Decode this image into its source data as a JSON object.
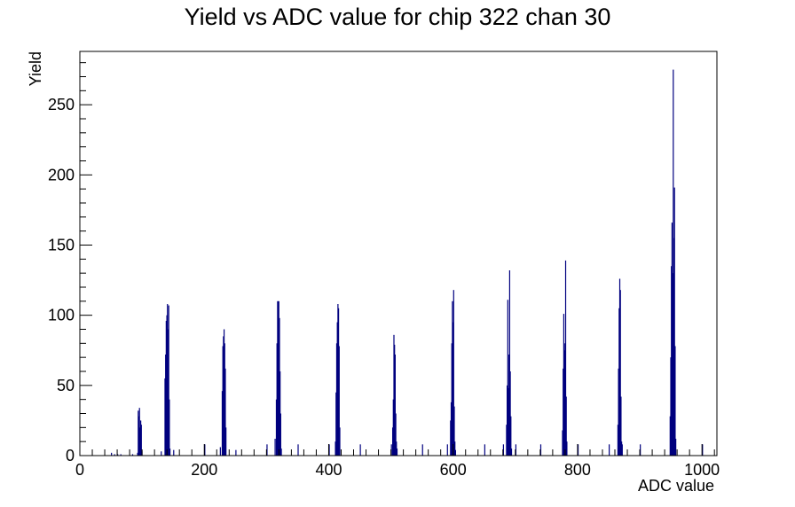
{
  "chart_data": {
    "type": "bar",
    "title": "Yield vs ADC value for chip 322 chan 30",
    "xlabel": "ADC value",
    "ylabel": "Yield",
    "xlim": [
      0,
      1024
    ],
    "ylim": [
      0,
      288
    ],
    "xticks": [
      0,
      200,
      400,
      600,
      800,
      1000
    ],
    "xtick_labels": [
      "0",
      "200",
      "400",
      "600",
      "800",
      "1000"
    ],
    "yticks": [
      0,
      50,
      100,
      150,
      200,
      250
    ],
    "ytick_labels": [
      "0",
      "50",
      "100",
      "150",
      "200",
      "250"
    ],
    "grid": false,
    "legend": "none",
    "line_color": "#00007f",
    "series": [
      {
        "x": [
          50,
          55,
          60,
          65,
          84,
          92,
          93,
          94,
          95,
          96,
          97,
          98,
          99,
          130,
          136,
          137,
          138,
          139,
          140,
          141,
          142,
          143,
          144,
          150,
          200,
          225,
          228,
          229,
          230,
          231,
          232,
          233,
          234,
          250,
          300,
          313,
          315,
          316,
          317,
          318,
          319,
          320,
          321,
          322,
          323,
          350,
          400,
          410,
          411,
          412,
          413,
          414,
          415,
          416,
          417,
          450,
          500,
          502,
          503,
          504,
          505,
          506,
          507,
          508,
          509,
          550,
          590,
          595,
          596,
          597,
          598,
          599,
          600,
          601,
          602,
          603,
          650,
          680,
          685,
          686,
          687,
          688,
          689,
          690,
          691,
          692,
          693,
          700,
          740,
          775,
          776,
          777,
          778,
          779,
          780,
          781,
          782,
          800,
          850,
          864,
          865,
          866,
          867,
          868,
          869,
          870,
          871,
          900,
          948,
          949,
          950,
          951,
          952,
          953,
          954,
          955,
          956,
          957,
          1000
        ],
        "y": [
          2,
          1,
          1,
          1,
          1,
          2,
          32,
          28,
          34,
          20,
          25,
          22,
          3,
          3,
          55,
          72,
          96,
          100,
          108,
          90,
          107,
          40,
          5,
          4,
          8,
          6,
          46,
          78,
          85,
          90,
          80,
          62,
          20,
          4,
          8,
          12,
          40,
          80,
          110,
          110,
          110,
          98,
          60,
          30,
          5,
          8,
          8,
          10,
          45,
          80,
          95,
          108,
          105,
          78,
          20,
          8,
          8,
          20,
          40,
          86,
          79,
          72,
          30,
          10,
          5,
          8,
          8,
          25,
          38,
          80,
          110,
          95,
          118,
          35,
          10,
          4,
          8,
          8,
          22,
          50,
          111,
          48,
          72,
          132,
          60,
          28,
          5,
          8,
          8,
          18,
          62,
          101,
          75,
          80,
          139,
          42,
          10,
          8,
          8,
          22,
          62,
          105,
          126,
          118,
          42,
          10,
          8,
          8,
          28,
          70,
          135,
          166,
          130,
          275,
          155,
          191,
          78,
          12,
          8
        ]
      }
    ]
  }
}
